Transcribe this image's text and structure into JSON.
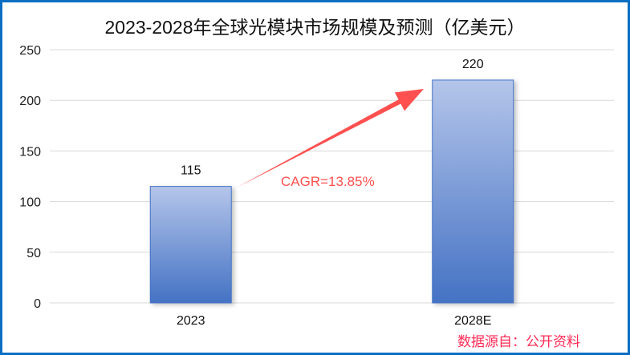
{
  "chart_data": {
    "type": "bar",
    "title": "2023-2028年全球光模块市场规模及预测（亿美元）",
    "categories": [
      "2023",
      "2028E"
    ],
    "values": [
      115,
      220
    ],
    "data_labels": [
      "115",
      "220"
    ],
    "ylim": [
      0,
      250
    ],
    "yticks": [
      0,
      50,
      100,
      150,
      200,
      250
    ],
    "ytick_labels": [
      "0",
      "50",
      "100",
      "150",
      "200",
      "250"
    ],
    "grid": true,
    "annotation": "CAGR=13.85%",
    "xlabel": "",
    "ylabel": ""
  },
  "source": "数据源自：公开资料",
  "colors": {
    "bar_top": "#b4c5ea",
    "bar_bottom": "#4472c4",
    "bar_border": "#4472c4",
    "arrow": "#ff5050",
    "frame": "#0a6fc2"
  }
}
